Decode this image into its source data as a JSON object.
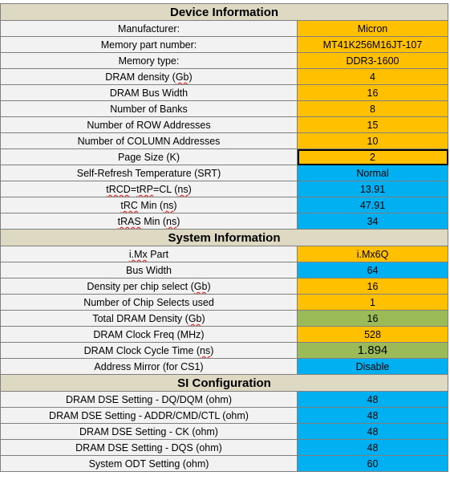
{
  "device": {
    "title": "Device Information",
    "rows": [
      {
        "label": "Manufacturer:",
        "value": "Micron"
      },
      {
        "label": "Memory part number:",
        "value": "MT41K256M16JT-107"
      },
      {
        "label": "Memory type:",
        "value": "DDR3-1600"
      },
      {
        "label": "DRAM density (Gb)",
        "value": "4"
      },
      {
        "label": "DRAM Bus Width",
        "value": "16"
      },
      {
        "label": "Number of Banks",
        "value": "8"
      },
      {
        "label": "Number of ROW Addresses",
        "value": "15"
      },
      {
        "label": "Number of COLUMN Addresses",
        "value": "10"
      },
      {
        "label": "Page Size (K)",
        "value": "2"
      },
      {
        "label": "Self-Refresh Temperature (SRT)",
        "value": "Normal"
      },
      {
        "label": "tRCD=tRP=CL (ns)",
        "value": "13.91"
      },
      {
        "label": "tRC Min (ns)",
        "value": "47.91"
      },
      {
        "label": "tRAS Min (ns)",
        "value": "34"
      }
    ]
  },
  "system": {
    "title": "System Information",
    "rows": [
      {
        "label": "i.Mx Part",
        "value": "i.Mx6Q"
      },
      {
        "label": "Bus Width",
        "value": "64"
      },
      {
        "label": "Density per chip select (Gb)",
        "value": "16"
      },
      {
        "label": "Number of Chip Selects used",
        "value": "1"
      },
      {
        "label": "Total DRAM Density (Gb)",
        "value": "16"
      },
      {
        "label": "DRAM Clock Freq (MHz)",
        "value": "528"
      },
      {
        "label": "DRAM Clock Cycle Time (ns)",
        "value": "1.894"
      },
      {
        "label": "Address Mirror (for CS1)",
        "value": "Disable"
      }
    ]
  },
  "si": {
    "title": "SI Configuration",
    "rows": [
      {
        "label": "DRAM DSE Setting - DQ/DQM (ohm)",
        "value": "48"
      },
      {
        "label": "DRAM DSE Setting - ADDR/CMD/CTL (ohm)",
        "value": "48"
      },
      {
        "label": "DRAM DSE Setting - CK (ohm)",
        "value": "48"
      },
      {
        "label": "DRAM DSE Setting - DQS (ohm)",
        "value": "48"
      },
      {
        "label": "System ODT Setting (ohm)",
        "value": "60"
      }
    ]
  },
  "colors": {
    "input": "#ffc000",
    "calculated": "#00b0f0",
    "derived": "#9bbb59",
    "header": "#ddd9c3",
    "label": "#f2f2f2"
  }
}
